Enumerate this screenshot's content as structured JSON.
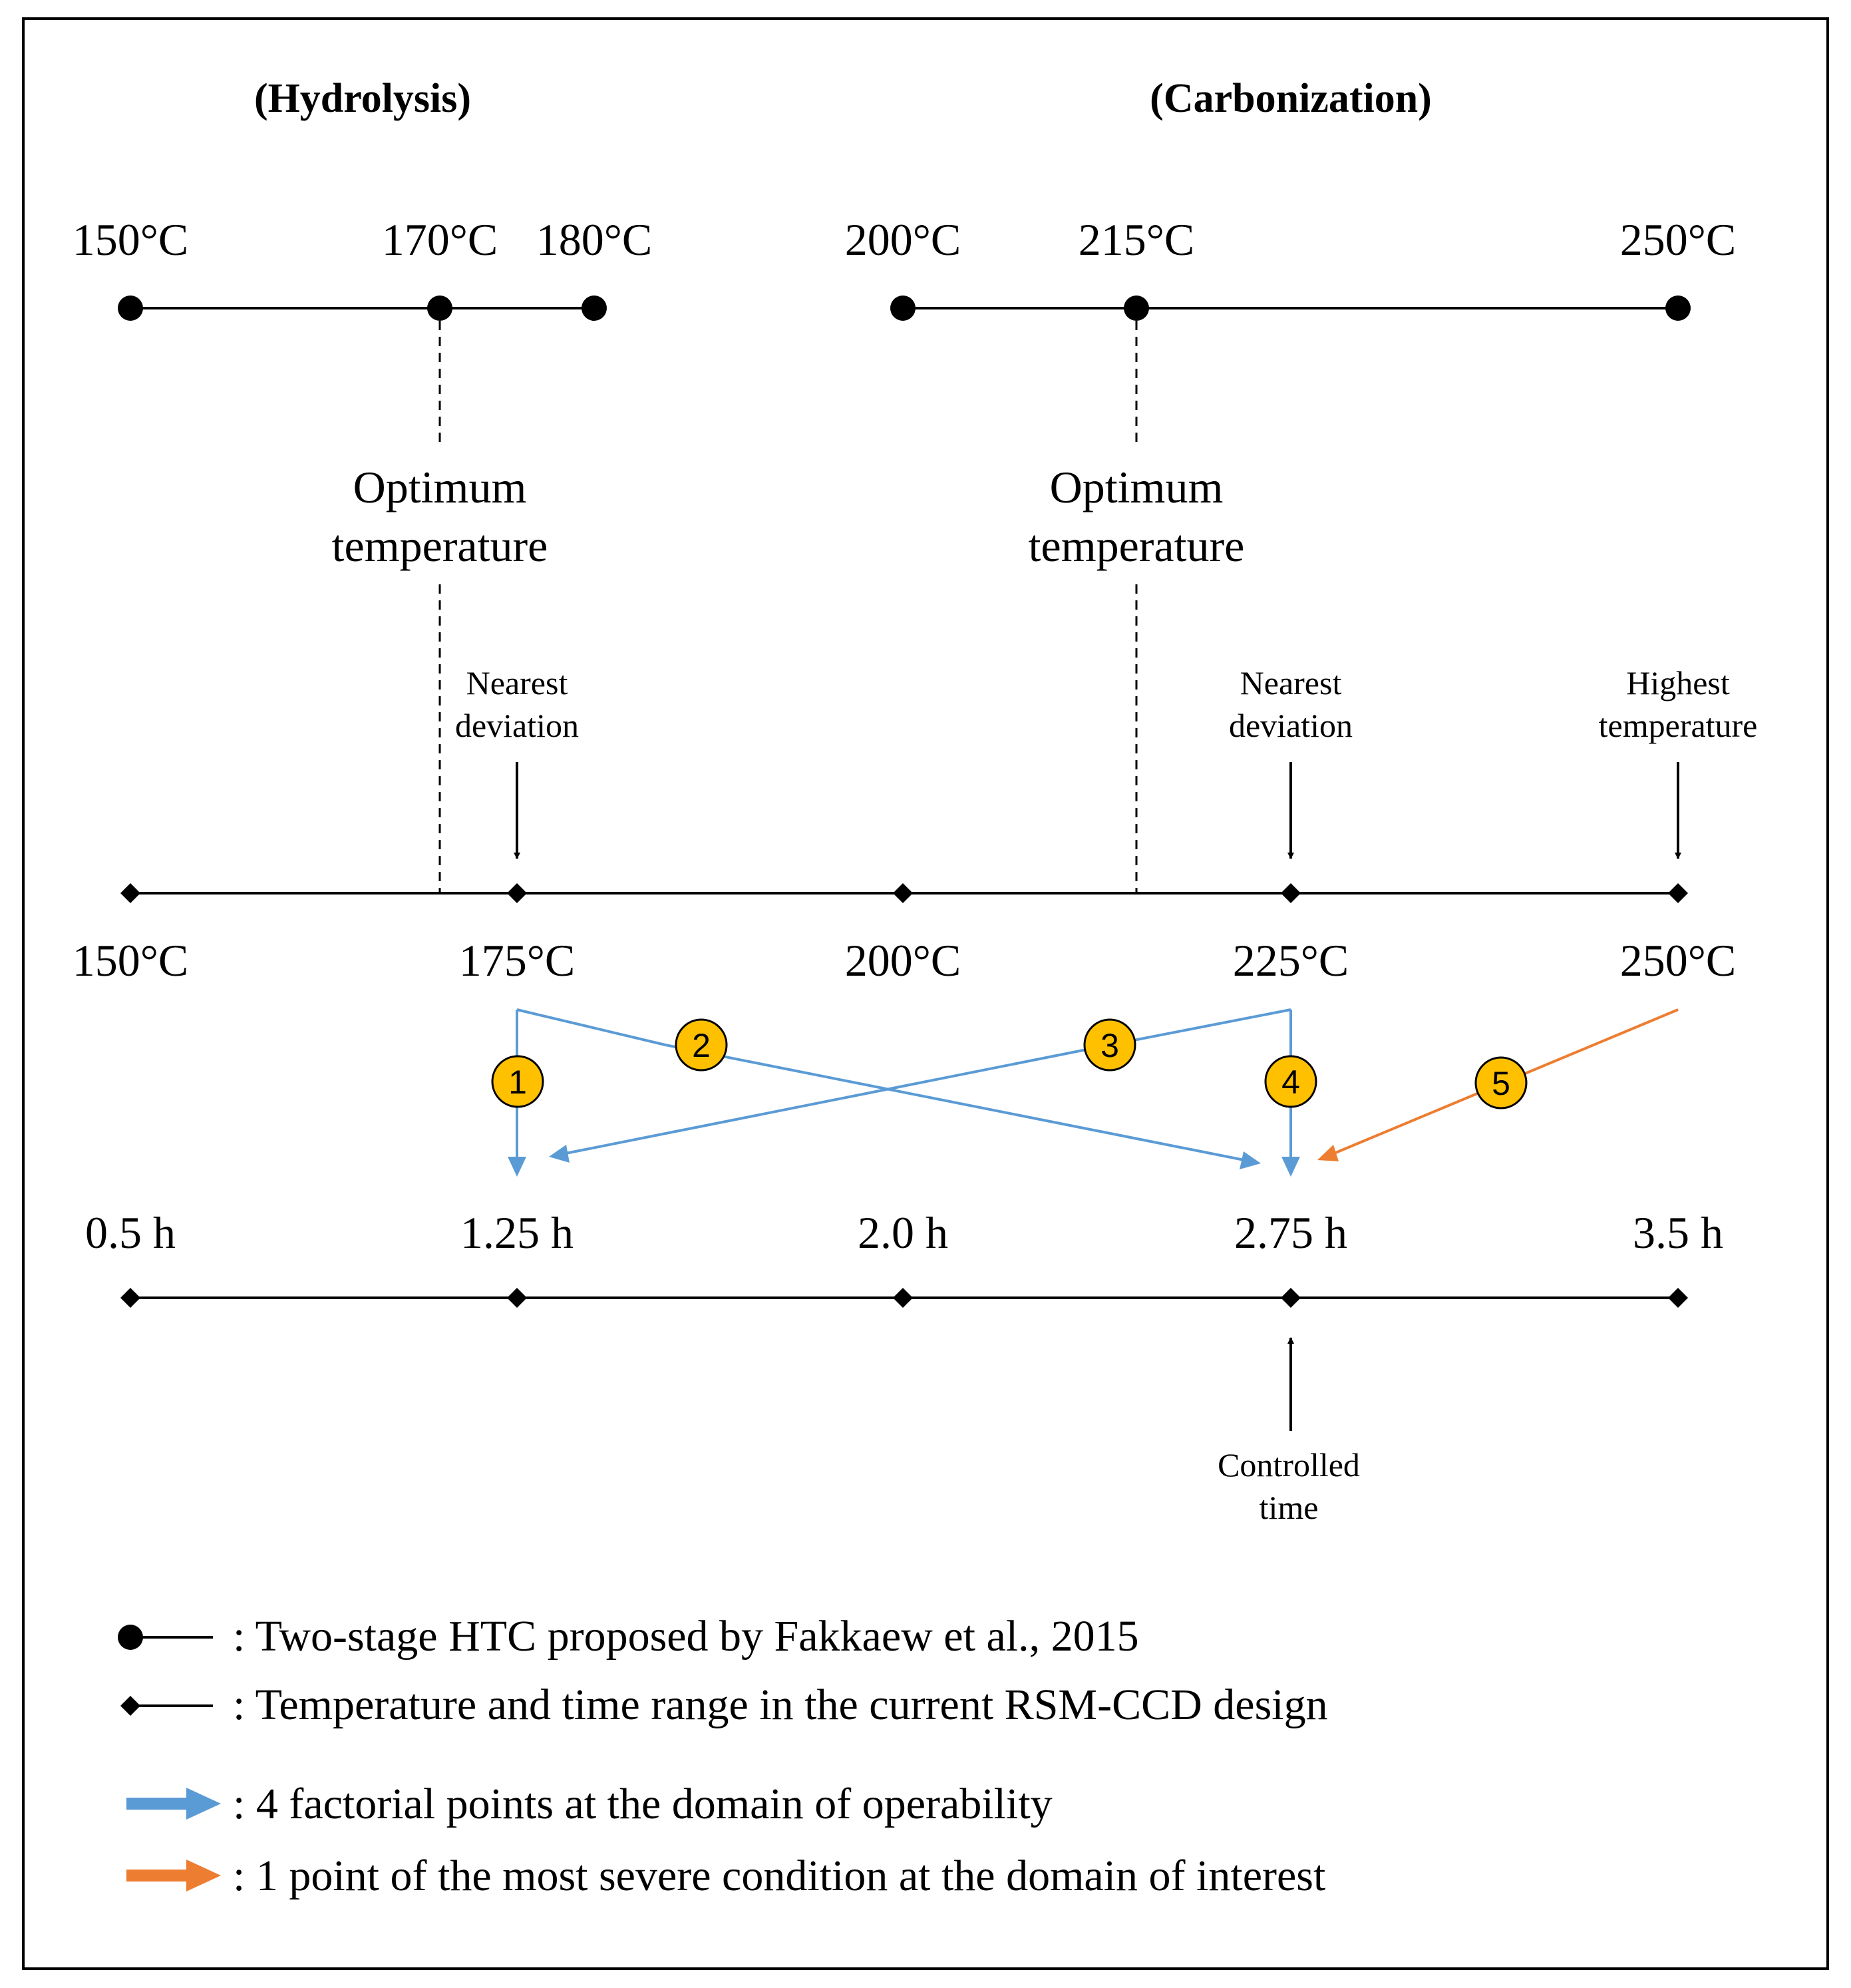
{
  "titles": {
    "hydrolysis": "(Hydrolysis)",
    "carbonization": "(Carbonization)"
  },
  "top_timeline": {
    "labels": [
      "150°C",
      "170°C",
      "180°C",
      "200°C",
      "215°C",
      "250°C"
    ]
  },
  "optimum": {
    "left_line1": "Optimum",
    "left_line2": "temperature",
    "right_line1": "Optimum",
    "right_line2": "temperature"
  },
  "annotations": {
    "nearest_left_1": "Nearest",
    "nearest_left_2": "deviation",
    "nearest_right_1": "Nearest",
    "nearest_right_2": "deviation",
    "highest_1": "Highest",
    "highest_2": "temperature",
    "controlled_1": "Controlled",
    "controlled_2": "time"
  },
  "temp_axis": {
    "labels": [
      "150°C",
      "175°C",
      "200°C",
      "225°C",
      "250°C"
    ]
  },
  "time_axis": {
    "labels": [
      "0.5 h",
      "1.25 h",
      "2.0 h",
      "2.75 h",
      "3.5 h"
    ]
  },
  "markers": [
    "1",
    "2",
    "3",
    "4",
    "5"
  ],
  "legend": {
    "circle_line": ": Two-stage HTC proposed by Fakkaew et al., 2015",
    "diamond_line": ": Temperature and time range in the current RSM-CCD design",
    "blue_arrow": ": 4 factorial points at the domain of operability",
    "orange_arrow": ": 1 point of the most severe condition at the domain of interest"
  },
  "colors": {
    "blue": "#5b9bd5",
    "orange": "#ed7d31",
    "marker_fill": "#ffc000",
    "line": "#000000"
  }
}
